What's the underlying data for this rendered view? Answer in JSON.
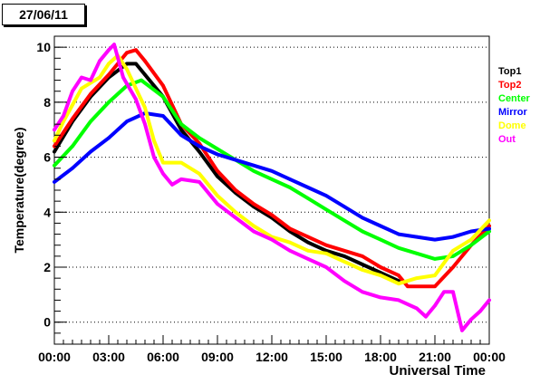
{
  "chart_data": {
    "type": "line",
    "title": "27/06/11",
    "xlabel": "Universal Time",
    "ylabel": "Temperature(degree)",
    "xlim": [
      0,
      24
    ],
    "ylim": [
      -0.8,
      10.4
    ],
    "x_ticks": [
      0,
      3,
      6,
      9,
      12,
      15,
      18,
      21,
      24
    ],
    "x_tick_labels": [
      "00:00",
      "03:00",
      "06:00",
      "09:00",
      "12:00",
      "15:00",
      "18:00",
      "21:00",
      "00:00"
    ],
    "y_ticks": [
      0,
      2,
      4,
      6,
      8,
      10
    ],
    "y_tick_labels": [
      "0",
      "2",
      "4",
      "6",
      "8",
      "10"
    ],
    "grid": "y-dotted",
    "legend": "right",
    "series": [
      {
        "name": "Top1",
        "color": "#000000",
        "points": [
          [
            0,
            6.2
          ],
          [
            1,
            7.3
          ],
          [
            2,
            8.2
          ],
          [
            3,
            8.9
          ],
          [
            4,
            9.4
          ],
          [
            4.5,
            9.4
          ],
          [
            5,
            9.0
          ],
          [
            6,
            8.2
          ],
          [
            7,
            7.0
          ],
          [
            8,
            6.2
          ],
          [
            9,
            5.3
          ],
          [
            10,
            4.7
          ],
          [
            11,
            4.2
          ],
          [
            12,
            3.8
          ],
          [
            13,
            3.3
          ],
          [
            14,
            2.9
          ],
          [
            15,
            2.6
          ],
          [
            16,
            2.4
          ],
          [
            17,
            2.1
          ],
          [
            18,
            1.8
          ],
          [
            19,
            1.5
          ]
        ]
      },
      {
        "name": "Top2",
        "color": "#ff0000",
        "points": [
          [
            0,
            6.4
          ],
          [
            1,
            7.4
          ],
          [
            2,
            8.3
          ],
          [
            3,
            9.0
          ],
          [
            4,
            9.8
          ],
          [
            4.5,
            9.9
          ],
          [
            5,
            9.5
          ],
          [
            6,
            8.6
          ],
          [
            7,
            7.2
          ],
          [
            8,
            6.5
          ],
          [
            9,
            5.5
          ],
          [
            10,
            4.8
          ],
          [
            11,
            4.3
          ],
          [
            12,
            3.9
          ],
          [
            13,
            3.4
          ],
          [
            14,
            3.1
          ],
          [
            15,
            2.8
          ],
          [
            16,
            2.6
          ],
          [
            17,
            2.4
          ],
          [
            18,
            2.0
          ],
          [
            19,
            1.7
          ],
          [
            19.5,
            1.3
          ],
          [
            20,
            1.3
          ],
          [
            21,
            1.3
          ],
          [
            22,
            2.0
          ],
          [
            23,
            2.8
          ],
          [
            24,
            3.5
          ]
        ]
      },
      {
        "name": "Center",
        "color": "#00ff00",
        "points": [
          [
            0,
            5.7
          ],
          [
            1,
            6.4
          ],
          [
            2,
            7.3
          ],
          [
            3,
            8.0
          ],
          [
            4,
            8.6
          ],
          [
            4.8,
            8.8
          ],
          [
            6,
            8.2
          ],
          [
            7,
            7.2
          ],
          [
            8,
            6.7
          ],
          [
            9,
            6.3
          ],
          [
            10,
            5.9
          ],
          [
            11,
            5.5
          ],
          [
            12,
            5.2
          ],
          [
            13,
            4.9
          ],
          [
            14,
            4.5
          ],
          [
            15,
            4.1
          ],
          [
            16,
            3.7
          ],
          [
            17,
            3.3
          ],
          [
            18,
            3.0
          ],
          [
            19,
            2.7
          ],
          [
            20,
            2.5
          ],
          [
            21,
            2.3
          ],
          [
            22,
            2.4
          ],
          [
            23,
            2.8
          ],
          [
            24,
            3.3
          ]
        ]
      },
      {
        "name": "Mirror",
        "color": "#0000ff",
        "points": [
          [
            0,
            5.1
          ],
          [
            1,
            5.6
          ],
          [
            2,
            6.2
          ],
          [
            3,
            6.7
          ],
          [
            4,
            7.3
          ],
          [
            5,
            7.6
          ],
          [
            6,
            7.5
          ],
          [
            7,
            6.8
          ],
          [
            8,
            6.4
          ],
          [
            9,
            6.1
          ],
          [
            10,
            5.9
          ],
          [
            11,
            5.7
          ],
          [
            12,
            5.5
          ],
          [
            13,
            5.2
          ],
          [
            14,
            4.9
          ],
          [
            15,
            4.6
          ],
          [
            16,
            4.2
          ],
          [
            17,
            3.8
          ],
          [
            18,
            3.5
          ],
          [
            19,
            3.2
          ],
          [
            20,
            3.1
          ],
          [
            21,
            3.0
          ],
          [
            22,
            3.1
          ],
          [
            23,
            3.3
          ],
          [
            24,
            3.4
          ]
        ]
      },
      {
        "name": "Dome",
        "color": "#ffff00",
        "points": [
          [
            0,
            6.6
          ],
          [
            0.5,
            7.3
          ],
          [
            1,
            7.9
          ],
          [
            1.5,
            8.5
          ],
          [
            2,
            8.7
          ],
          [
            2.5,
            8.9
          ],
          [
            3,
            9.4
          ],
          [
            3.5,
            9.7
          ],
          [
            4,
            9.2
          ],
          [
            4.5,
            8.5
          ],
          [
            5,
            7.8
          ],
          [
            5.5,
            6.6
          ],
          [
            6,
            5.8
          ],
          [
            7,
            5.8
          ],
          [
            8,
            5.4
          ],
          [
            9,
            4.6
          ],
          [
            10,
            4.0
          ],
          [
            11,
            3.5
          ],
          [
            12,
            3.1
          ],
          [
            13,
            2.9
          ],
          [
            14,
            2.6
          ],
          [
            15,
            2.5
          ],
          [
            16,
            2.2
          ],
          [
            17,
            1.9
          ],
          [
            18,
            1.7
          ],
          [
            19,
            1.4
          ],
          [
            20,
            1.6
          ],
          [
            21,
            1.7
          ],
          [
            22,
            2.6
          ],
          [
            23,
            3.0
          ],
          [
            24,
            3.7
          ]
        ]
      },
      {
        "name": "Out",
        "color": "#ff00ff",
        "points": [
          [
            0,
            7.0
          ],
          [
            0.5,
            7.5
          ],
          [
            1,
            8.4
          ],
          [
            1.5,
            8.9
          ],
          [
            2,
            8.8
          ],
          [
            2.5,
            9.5
          ],
          [
            3,
            9.9
          ],
          [
            3.3,
            10.1
          ],
          [
            3.8,
            8.9
          ],
          [
            4.5,
            8.1
          ],
          [
            5,
            7.2
          ],
          [
            5.5,
            6.0
          ],
          [
            6,
            5.4
          ],
          [
            6.5,
            5.0
          ],
          [
            7,
            5.2
          ],
          [
            8,
            5.1
          ],
          [
            9,
            4.3
          ],
          [
            10,
            3.8
          ],
          [
            11,
            3.3
          ],
          [
            12,
            3.0
          ],
          [
            13,
            2.6
          ],
          [
            14,
            2.3
          ],
          [
            15,
            2.0
          ],
          [
            16,
            1.5
          ],
          [
            17,
            1.1
          ],
          [
            18,
            0.9
          ],
          [
            19,
            0.8
          ],
          [
            20,
            0.5
          ],
          [
            20.5,
            0.2
          ],
          [
            21,
            0.6
          ],
          [
            21.5,
            1.1
          ],
          [
            22,
            1.1
          ],
          [
            22.5,
            -0.3
          ],
          [
            23,
            0.1
          ],
          [
            23.5,
            0.4
          ],
          [
            24,
            0.8
          ]
        ]
      }
    ]
  }
}
